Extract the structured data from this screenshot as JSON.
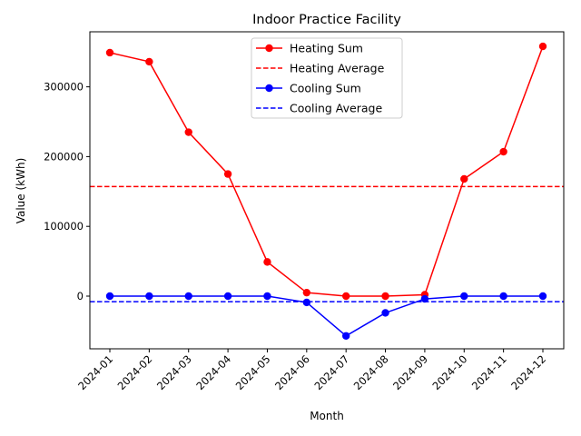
{
  "chart_data": {
    "type": "line",
    "title": "Indoor Practice Facility",
    "xlabel": "Month",
    "ylabel": "Value (kWh)",
    "categories": [
      "2024-01",
      "2024-02",
      "2024-03",
      "2024-04",
      "2024-05",
      "2024-06",
      "2024-07",
      "2024-08",
      "2024-09",
      "2024-10",
      "2024-11",
      "2024-12"
    ],
    "ylim": [
      -80000,
      380000
    ],
    "yticks": [
      0,
      100000,
      200000,
      300000
    ],
    "ytick_labels": [
      "0",
      "100000",
      "200000",
      "300000"
    ],
    "grid": false,
    "legend_position": "top-center",
    "series": [
      {
        "name": "Heating Sum",
        "style": "solid-marker",
        "color": "#ff0000",
        "values": [
          349000,
          336000,
          235000,
          175000,
          49000,
          5000,
          0,
          0,
          2000,
          168000,
          207000,
          358000
        ]
      },
      {
        "name": "Heating Average",
        "style": "dashed",
        "color": "#ff0000",
        "value": 157000
      },
      {
        "name": "Cooling Sum",
        "style": "solid-marker",
        "color": "#0000ff",
        "values": [
          0,
          0,
          0,
          0,
          0,
          -9000,
          -57000,
          -24000,
          -4000,
          0,
          0,
          0
        ]
      },
      {
        "name": "Cooling Average",
        "style": "dashed",
        "color": "#0000ff",
        "value": -8000
      }
    ]
  }
}
